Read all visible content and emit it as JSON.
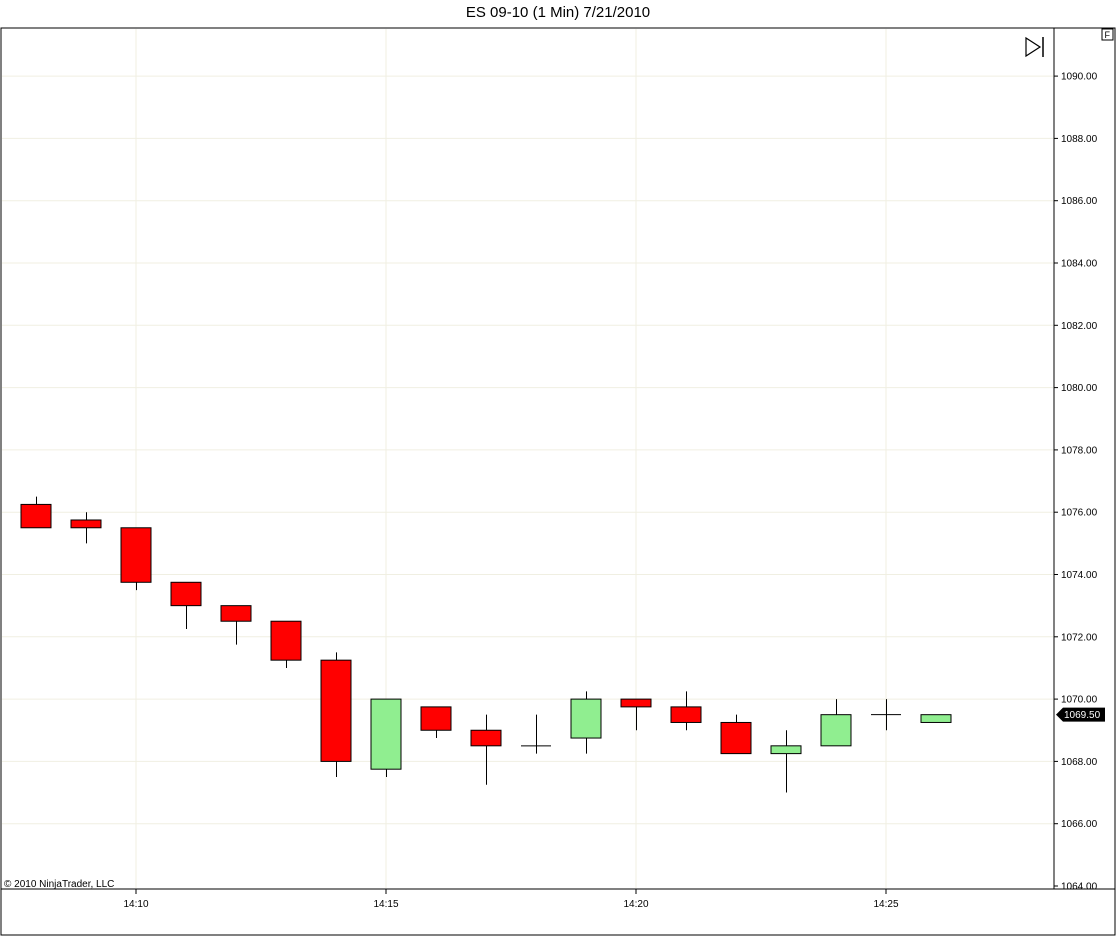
{
  "window": {
    "title": "ES 09-10 (1 Min)  7/21/2010"
  },
  "copyright": "© 2010 NinjaTrader, LLC",
  "corner_button": "F",
  "icons": {
    "scroll_end": "skip-to-end-icon"
  },
  "colors": {
    "up": "#90ee90",
    "down": "#ff0000",
    "wick": "#000000",
    "grid": "#f0efe2",
    "price_tag_bg": "#000000"
  },
  "chart_data": {
    "type": "candlestick",
    "title": "ES 09-10 (1 Min)  7/21/2010",
    "x_ticks": [
      "14:10",
      "14:15",
      "14:20",
      "14:25"
    ],
    "y_ticks": [
      "1064.00",
      "1066.00",
      "1068.00",
      "1070.00",
      "1072.00",
      "1074.00",
      "1076.00",
      "1078.00",
      "1080.00",
      "1082.00",
      "1084.00",
      "1086.00",
      "1088.00",
      "1090.00"
    ],
    "ylim": [
      1064.0,
      1091.6
    ],
    "grid": true,
    "last_price": "1069.50",
    "candles": [
      {
        "time": "14:08",
        "open": 1076.25,
        "high": 1076.5,
        "low": 1075.5,
        "close": 1075.5
      },
      {
        "time": "14:09",
        "open": 1075.75,
        "high": 1076.0,
        "low": 1075.0,
        "close": 1075.5
      },
      {
        "time": "14:10",
        "open": 1075.5,
        "high": 1075.5,
        "low": 1073.5,
        "close": 1073.75
      },
      {
        "time": "14:11",
        "open": 1073.75,
        "high": 1073.75,
        "low": 1072.25,
        "close": 1073.0
      },
      {
        "time": "14:12",
        "open": 1073.0,
        "high": 1073.0,
        "low": 1071.75,
        "close": 1072.5
      },
      {
        "time": "14:13",
        "open": 1072.5,
        "high": 1072.5,
        "low": 1071.0,
        "close": 1071.25
      },
      {
        "time": "14:14",
        "open": 1071.25,
        "high": 1071.5,
        "low": 1067.5,
        "close": 1068.0
      },
      {
        "time": "14:15",
        "open": 1067.75,
        "high": 1070.0,
        "low": 1067.5,
        "close": 1070.0
      },
      {
        "time": "14:16",
        "open": 1069.75,
        "high": 1069.75,
        "low": 1068.75,
        "close": 1069.0
      },
      {
        "time": "14:17",
        "open": 1069.0,
        "high": 1069.5,
        "low": 1067.25,
        "close": 1068.5
      },
      {
        "time": "14:18",
        "open": 1068.5,
        "high": 1069.5,
        "low": 1068.25,
        "close": 1068.5
      },
      {
        "time": "14:19",
        "open": 1068.75,
        "high": 1070.25,
        "low": 1068.25,
        "close": 1070.0
      },
      {
        "time": "14:20",
        "open": 1070.0,
        "high": 1070.0,
        "low": 1069.0,
        "close": 1069.75
      },
      {
        "time": "14:21",
        "open": 1069.75,
        "high": 1070.25,
        "low": 1069.0,
        "close": 1069.25
      },
      {
        "time": "14:22",
        "open": 1069.25,
        "high": 1069.5,
        "low": 1068.25,
        "close": 1068.25
      },
      {
        "time": "14:23",
        "open": 1068.25,
        "high": 1069.0,
        "low": 1067.0,
        "close": 1068.5
      },
      {
        "time": "14:24",
        "open": 1068.5,
        "high": 1070.0,
        "low": 1068.5,
        "close": 1069.5
      },
      {
        "time": "14:25",
        "open": 1069.5,
        "high": 1070.0,
        "low": 1069.0,
        "close": 1069.5
      },
      {
        "time": "14:26",
        "open": 1069.25,
        "high": 1069.5,
        "low": 1069.25,
        "close": 1069.5
      }
    ]
  }
}
